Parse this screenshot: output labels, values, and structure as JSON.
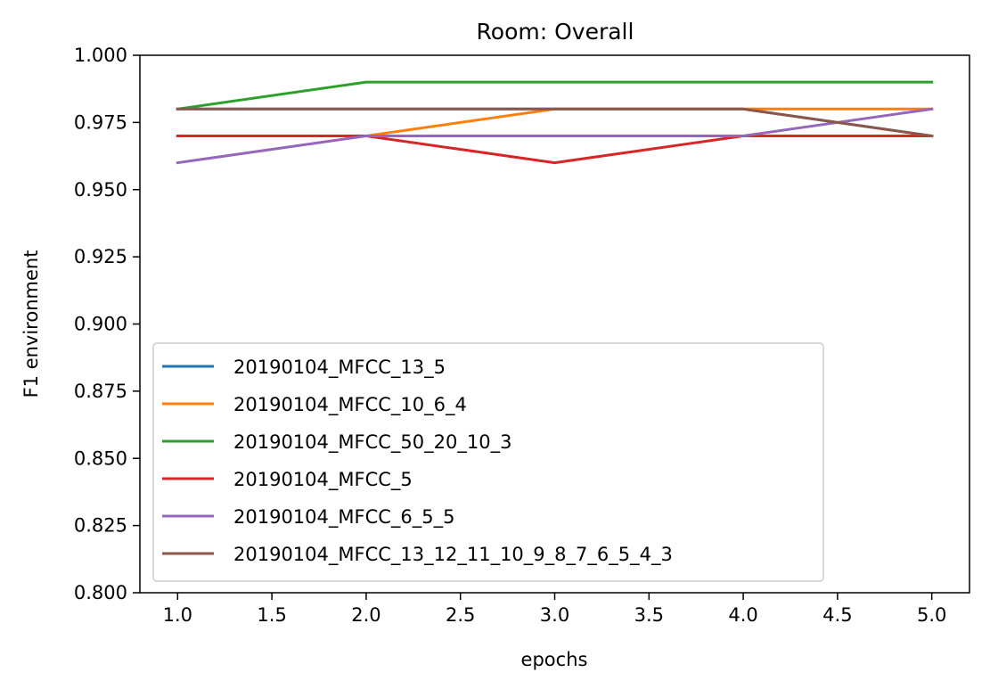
{
  "chart_data": {
    "type": "line",
    "title": "Room: Overall",
    "xlabel": "epochs",
    "ylabel": "F1 environment",
    "xlim": [
      0.8,
      5.2
    ],
    "ylim": [
      0.8,
      1.0
    ],
    "x": [
      1.0,
      2.0,
      3.0,
      4.0,
      5.0
    ],
    "xticks": [
      "1.0",
      "1.5",
      "2.0",
      "2.5",
      "3.0",
      "3.5",
      "4.0",
      "4.5",
      "5.0"
    ],
    "yticks": [
      "0.800",
      "0.825",
      "0.850",
      "0.875",
      "0.900",
      "0.925",
      "0.950",
      "0.975",
      "1.000"
    ],
    "grid": false,
    "legend_position": "lower-left",
    "series": [
      {
        "name": "20190104_MFCC_13_5",
        "color": "#1f77b4",
        "values": [
          0.98,
          0.98,
          0.98,
          0.98,
          0.97
        ]
      },
      {
        "name": "20190104_MFCC_10_6_4",
        "color": "#ff7f0e",
        "values": [
          0.97,
          0.97,
          0.98,
          0.98,
          0.98
        ]
      },
      {
        "name": "20190104_MFCC_50_20_10_3",
        "color": "#2ca02c",
        "values": [
          0.98,
          0.99,
          0.99,
          0.99,
          0.99
        ]
      },
      {
        "name": "20190104_MFCC_5",
        "color": "#d62728",
        "values": [
          0.97,
          0.97,
          0.96,
          0.97,
          0.97
        ]
      },
      {
        "name": "20190104_MFCC_6_5_5",
        "color": "#9467bd",
        "values": [
          0.96,
          0.97,
          0.97,
          0.97,
          0.98
        ]
      },
      {
        "name": "20190104_MFCC_13_12_11_10_9_8_7_6_5_4_3",
        "color": "#8c564b",
        "values": [
          0.98,
          0.98,
          0.98,
          0.98,
          0.97
        ]
      }
    ]
  }
}
